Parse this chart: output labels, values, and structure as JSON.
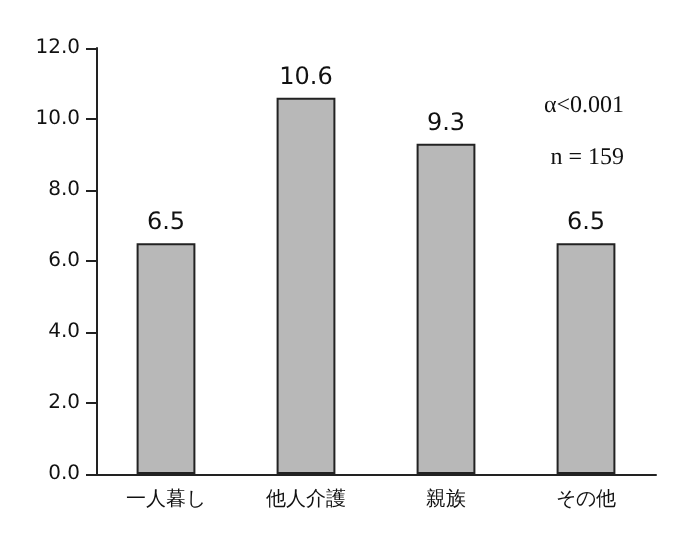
{
  "chart_data": {
    "type": "bar",
    "categories": [
      "一人暮し",
      "他人介護",
      "親族",
      "その他"
    ],
    "values": [
      6.5,
      10.6,
      9.3,
      6.5
    ],
    "color": "#b8b8b8",
    "data_labels": true,
    "ylim": [
      0,
      12
    ],
    "yticks": [
      {
        "value": 0,
        "label": "0.0"
      },
      {
        "value": 2,
        "label": "2.0"
      },
      {
        "value": 4,
        "label": "4.0"
      },
      {
        "value": 6,
        "label": "6.0"
      },
      {
        "value": 8,
        "label": "8.0"
      },
      {
        "value": 10,
        "label": "10.0"
      },
      {
        "value": 12,
        "label": "12.0"
      }
    ],
    "grid": false,
    "annotations": [
      "α<0.001",
      "n = 159"
    ]
  }
}
